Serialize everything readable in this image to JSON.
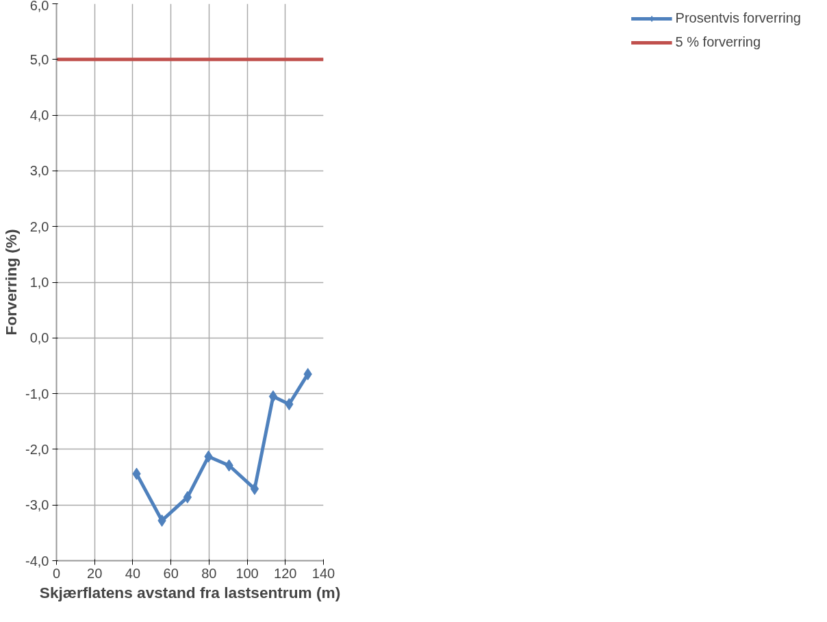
{
  "chart_data": {
    "type": "line",
    "xlabel": "Skjærflatens avstand fra lastsentrum (m)",
    "ylabel": "Forverring (%)",
    "xlim": [
      0,
      140
    ],
    "xticks": [
      0,
      20,
      40,
      60,
      80,
      100,
      120,
      140
    ],
    "ylim": [
      -4,
      6
    ],
    "yticks": [
      {
        "value": -4,
        "label": "-4,0"
      },
      {
        "value": -3,
        "label": "-3,0"
      },
      {
        "value": -2,
        "label": "-2,0"
      },
      {
        "value": -1,
        "label": "-1,0"
      },
      {
        "value": 0,
        "label": "0,0"
      },
      {
        "value": 1,
        "label": "1,0"
      },
      {
        "value": 2,
        "label": "2,0"
      },
      {
        "value": 3,
        "label": "3,0"
      },
      {
        "value": 4,
        "label": "4,0"
      },
      {
        "value": 5,
        "label": "5,0"
      },
      {
        "value": 6,
        "label": "6,0"
      }
    ],
    "series": [
      {
        "name": "Prosentvis forverring",
        "color": "#4f81bd",
        "marker": "diamond",
        "x": [
          42,
          55.3,
          68.7,
          79.7,
          90.5,
          103.9,
          113.6,
          122,
          131.8
        ],
        "values": [
          -2.44,
          -3.28,
          -2.86,
          -2.13,
          -2.29,
          -2.71,
          -1.05,
          -1.19,
          -0.65
        ]
      },
      {
        "name": "5 % forverring",
        "color": "#c0504d",
        "marker": "none",
        "x": [
          0,
          140
        ],
        "values": [
          5,
          5
        ]
      }
    ],
    "grid": true,
    "legend": "right",
    "line_style": "solid"
  }
}
